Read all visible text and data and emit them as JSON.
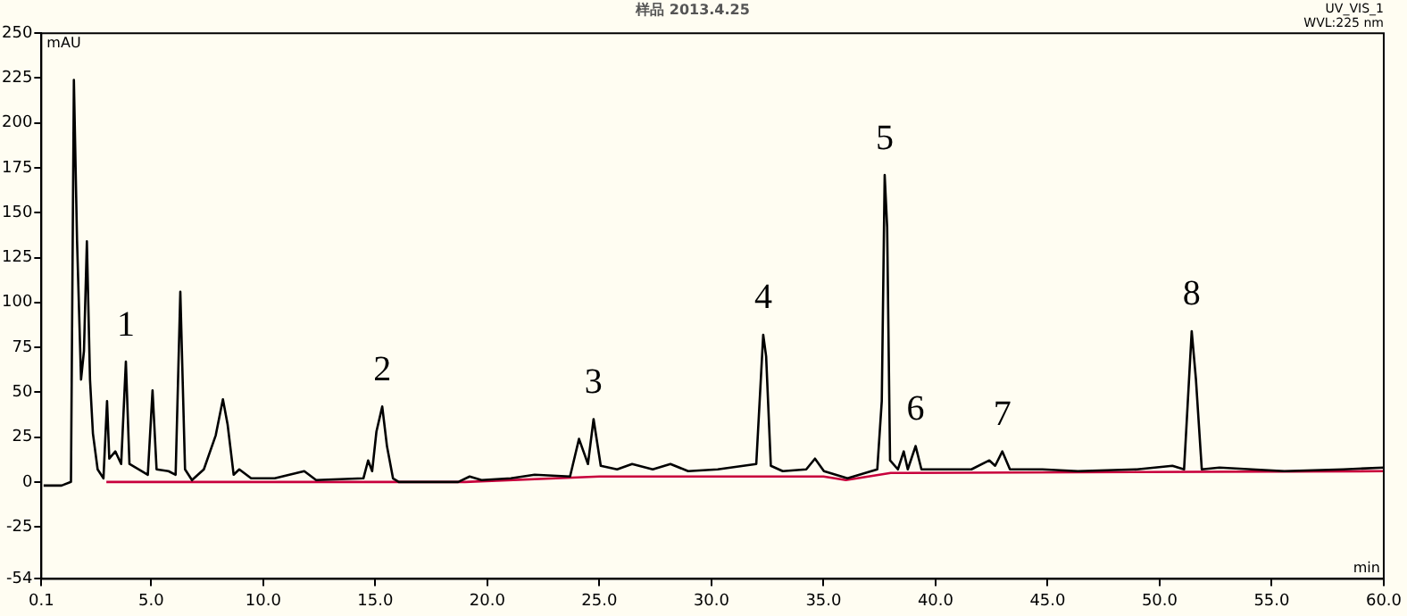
{
  "chart_data": {
    "type": "line",
    "title": "样品 2013.4.25",
    "xlabel": "min",
    "ylabel": "mAU",
    "xlim": [
      0.1,
      60.0
    ],
    "xticks": [
      {
        "value": 0.1,
        "label": "0.1"
      },
      {
        "value": 5,
        "label": "5.0"
      },
      {
        "value": 10,
        "label": "10.0"
      },
      {
        "value": 15,
        "label": "15.0"
      },
      {
        "value": 20,
        "label": "20.0"
      },
      {
        "value": 25,
        "label": "25.0"
      },
      {
        "value": 30,
        "label": "30.0"
      },
      {
        "value": 35,
        "label": "35.0"
      },
      {
        "value": 40,
        "label": "40.0"
      },
      {
        "value": 45,
        "label": "45.0"
      },
      {
        "value": 50,
        "label": "50.0"
      },
      {
        "value": 55,
        "label": "55.0"
      },
      {
        "value": 60,
        "label": "60.0"
      }
    ],
    "ylim": [
      -54,
      250
    ],
    "yticks": [
      -54,
      -25,
      0,
      25,
      50,
      75,
      100,
      125,
      150,
      175,
      200,
      225,
      250
    ],
    "grid": false,
    "legend": false,
    "marker": "none",
    "line_style": "solid",
    "series": [
      {
        "color": "#000000",
        "x": [
          0.2,
          1.0,
          1.42,
          1.55,
          1.69,
          1.87,
          2.0,
          2.13,
          2.27,
          2.4,
          2.61,
          2.87,
          3.03,
          3.13,
          3.4,
          3.66,
          3.87,
          4.03,
          4.45,
          4.85,
          5.06,
          5.24,
          5.77,
          6.09,
          6.3,
          6.51,
          6.82,
          7.35,
          7.88,
          8.2,
          8.41,
          8.68,
          8.93,
          9.46,
          10.51,
          11.83,
          12.36,
          14.47,
          14.68,
          14.86,
          15.05,
          15.31,
          15.52,
          15.79,
          16.05,
          18.7,
          19.21,
          19.74,
          21.05,
          22.11,
          23.69,
          24.09,
          24.49,
          24.74,
          25.06,
          25.79,
          26.46,
          27.38,
          28.17,
          28.96,
          30.28,
          32.0,
          32.31,
          32.44,
          32.65,
          33.18,
          34.23,
          34.62,
          35.02,
          36.07,
          37.4,
          37.6,
          37.73,
          37.84,
          37.97,
          38.32,
          38.58,
          38.76,
          39.11,
          39.37,
          40.55,
          41.6,
          42.4,
          42.66,
          42.98,
          43.32,
          44.77,
          46.35,
          48.99,
          50.57,
          51.09,
          51.43,
          51.62,
          51.88,
          52.67,
          55.57,
          58.2,
          60.0
        ],
        "values": [
          -2,
          -2,
          0,
          224,
          135,
          57,
          73,
          134,
          57,
          27,
          7,
          2,
          45,
          13,
          17,
          10,
          67,
          10,
          7,
          4,
          51,
          7,
          6,
          4,
          106,
          7,
          1,
          7,
          26,
          46,
          32,
          4,
          7,
          2,
          2,
          6,
          1,
          2,
          12,
          6,
          28,
          42,
          20,
          2,
          0,
          0,
          3,
          1,
          2,
          4,
          3,
          24,
          10,
          35,
          9,
          7,
          10,
          7,
          10,
          6,
          7,
          10,
          82,
          70,
          9,
          6,
          7,
          13,
          6,
          2,
          7,
          45,
          171,
          142,
          12,
          7,
          17,
          7,
          20,
          7,
          7,
          7,
          12,
          9,
          17,
          7,
          7,
          6,
          7,
          9,
          7,
          84,
          57,
          7,
          8,
          6,
          7,
          8
        ]
      },
      {
        "color": "#c8003c",
        "x": [
          3.0,
          19,
          25,
          35,
          36,
          38,
          60.0
        ],
        "values": [
          0,
          0,
          3,
          3,
          1,
          5,
          6
        ]
      }
    ],
    "annotations": [
      {
        "text": "1",
        "x": 3.87,
        "y": 67
      },
      {
        "text": "2",
        "x": 15.31,
        "y": 42
      },
      {
        "text": "3",
        "x": 24.74,
        "y": 35
      },
      {
        "text": "4",
        "x": 32.31,
        "y": 82
      },
      {
        "text": "5",
        "x": 37.73,
        "y": 171
      },
      {
        "text": "6",
        "x": 39.11,
        "y": 20
      },
      {
        "text": "7",
        "x": 42.98,
        "y": 17
      },
      {
        "text": "8",
        "x": 51.43,
        "y": 84
      },
      "UV_VIS_1",
      "WVL:225 nm"
    ]
  }
}
